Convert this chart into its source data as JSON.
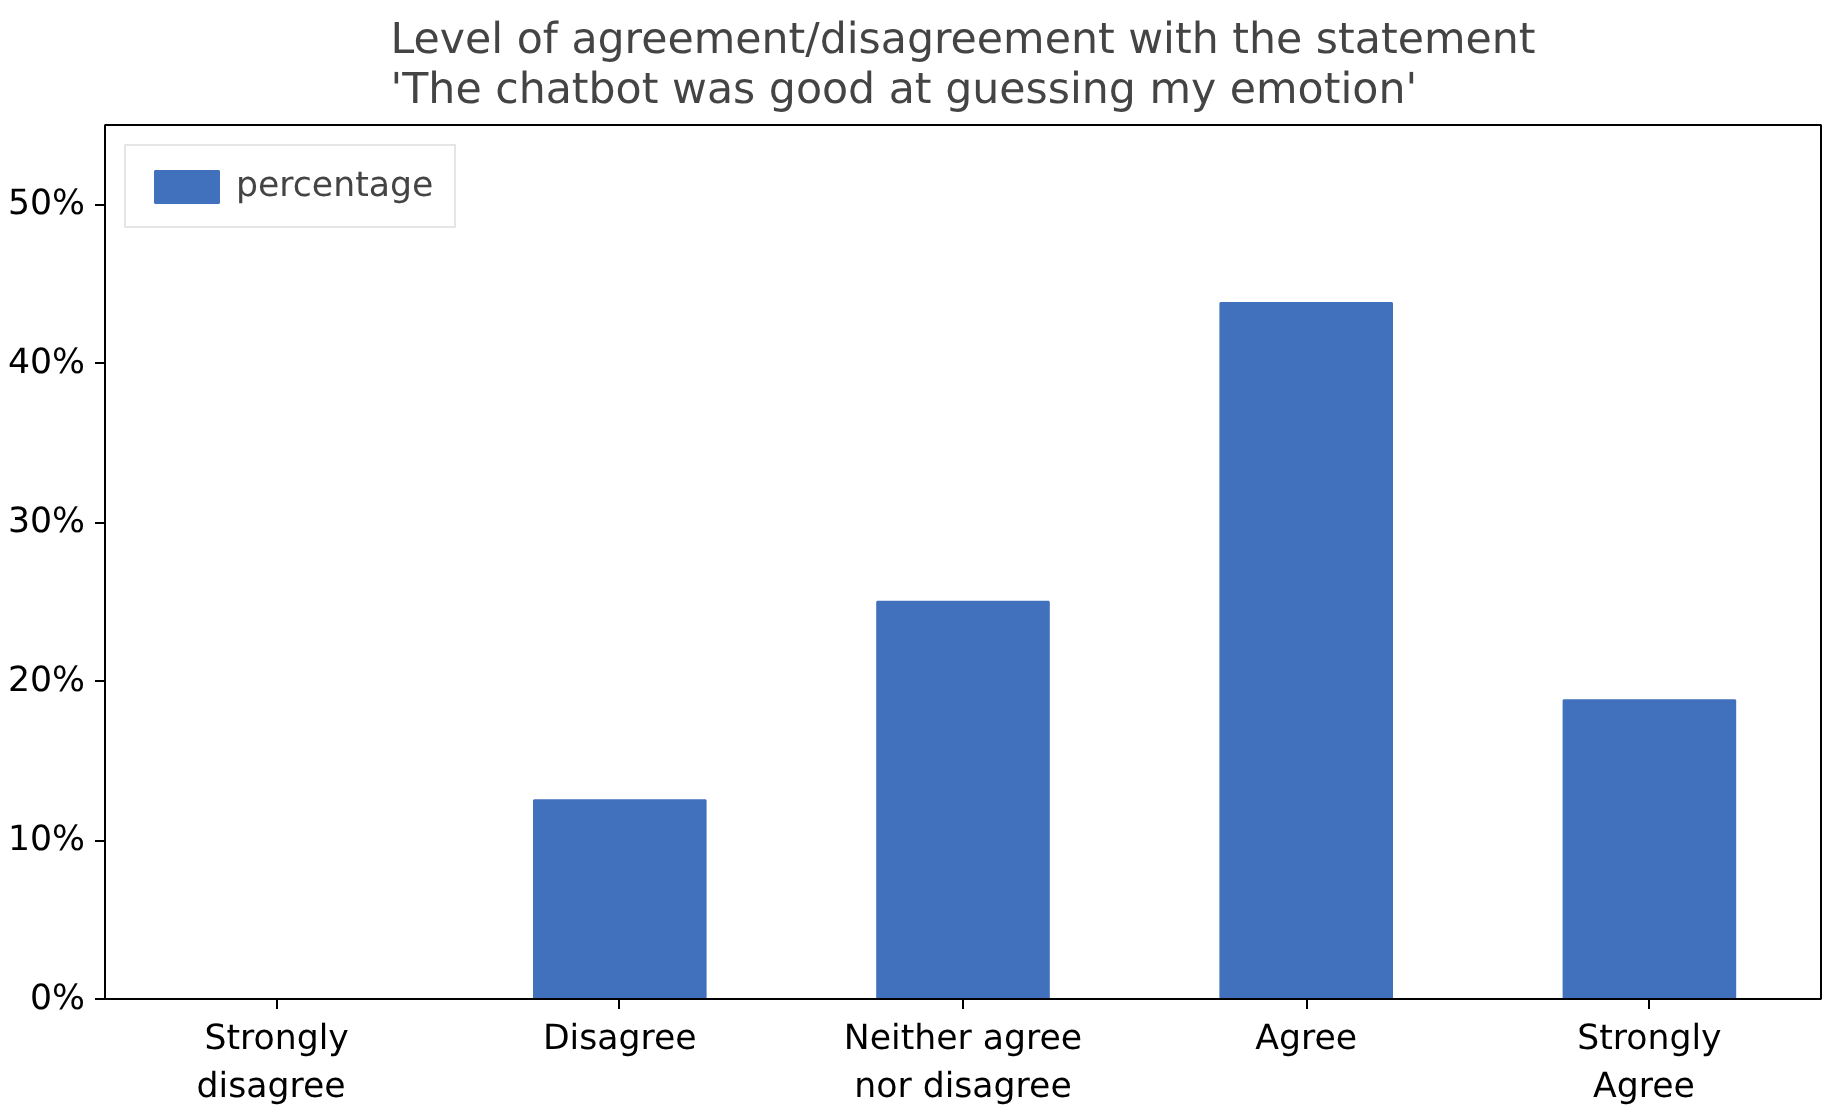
{
  "chart_data": {
    "type": "bar",
    "title": "Level of agreement/disagreement with the statement\n 'The chatbot was good at guessing my emotion'",
    "categories": [
      "Strongly\n disagree",
      "Disagree",
      "Neither agree\nnor disagree",
      "Agree",
      "Strongly\n Agree"
    ],
    "series": [
      {
        "name": "percentage",
        "color": "#4170bd",
        "values": [
          0,
          12.5,
          25,
          43.8,
          18.8
        ]
      }
    ],
    "ylim": [
      0,
      55
    ],
    "yticks": [
      {
        "value": 0,
        "label": "0%"
      },
      {
        "value": 10,
        "label": "10%"
      },
      {
        "value": 20,
        "label": "20%"
      },
      {
        "value": 30,
        "label": "30%"
      },
      {
        "value": 40,
        "label": "40%"
      },
      {
        "value": 50,
        "label": "50%"
      }
    ],
    "grid": false,
    "legend": "top left"
  }
}
